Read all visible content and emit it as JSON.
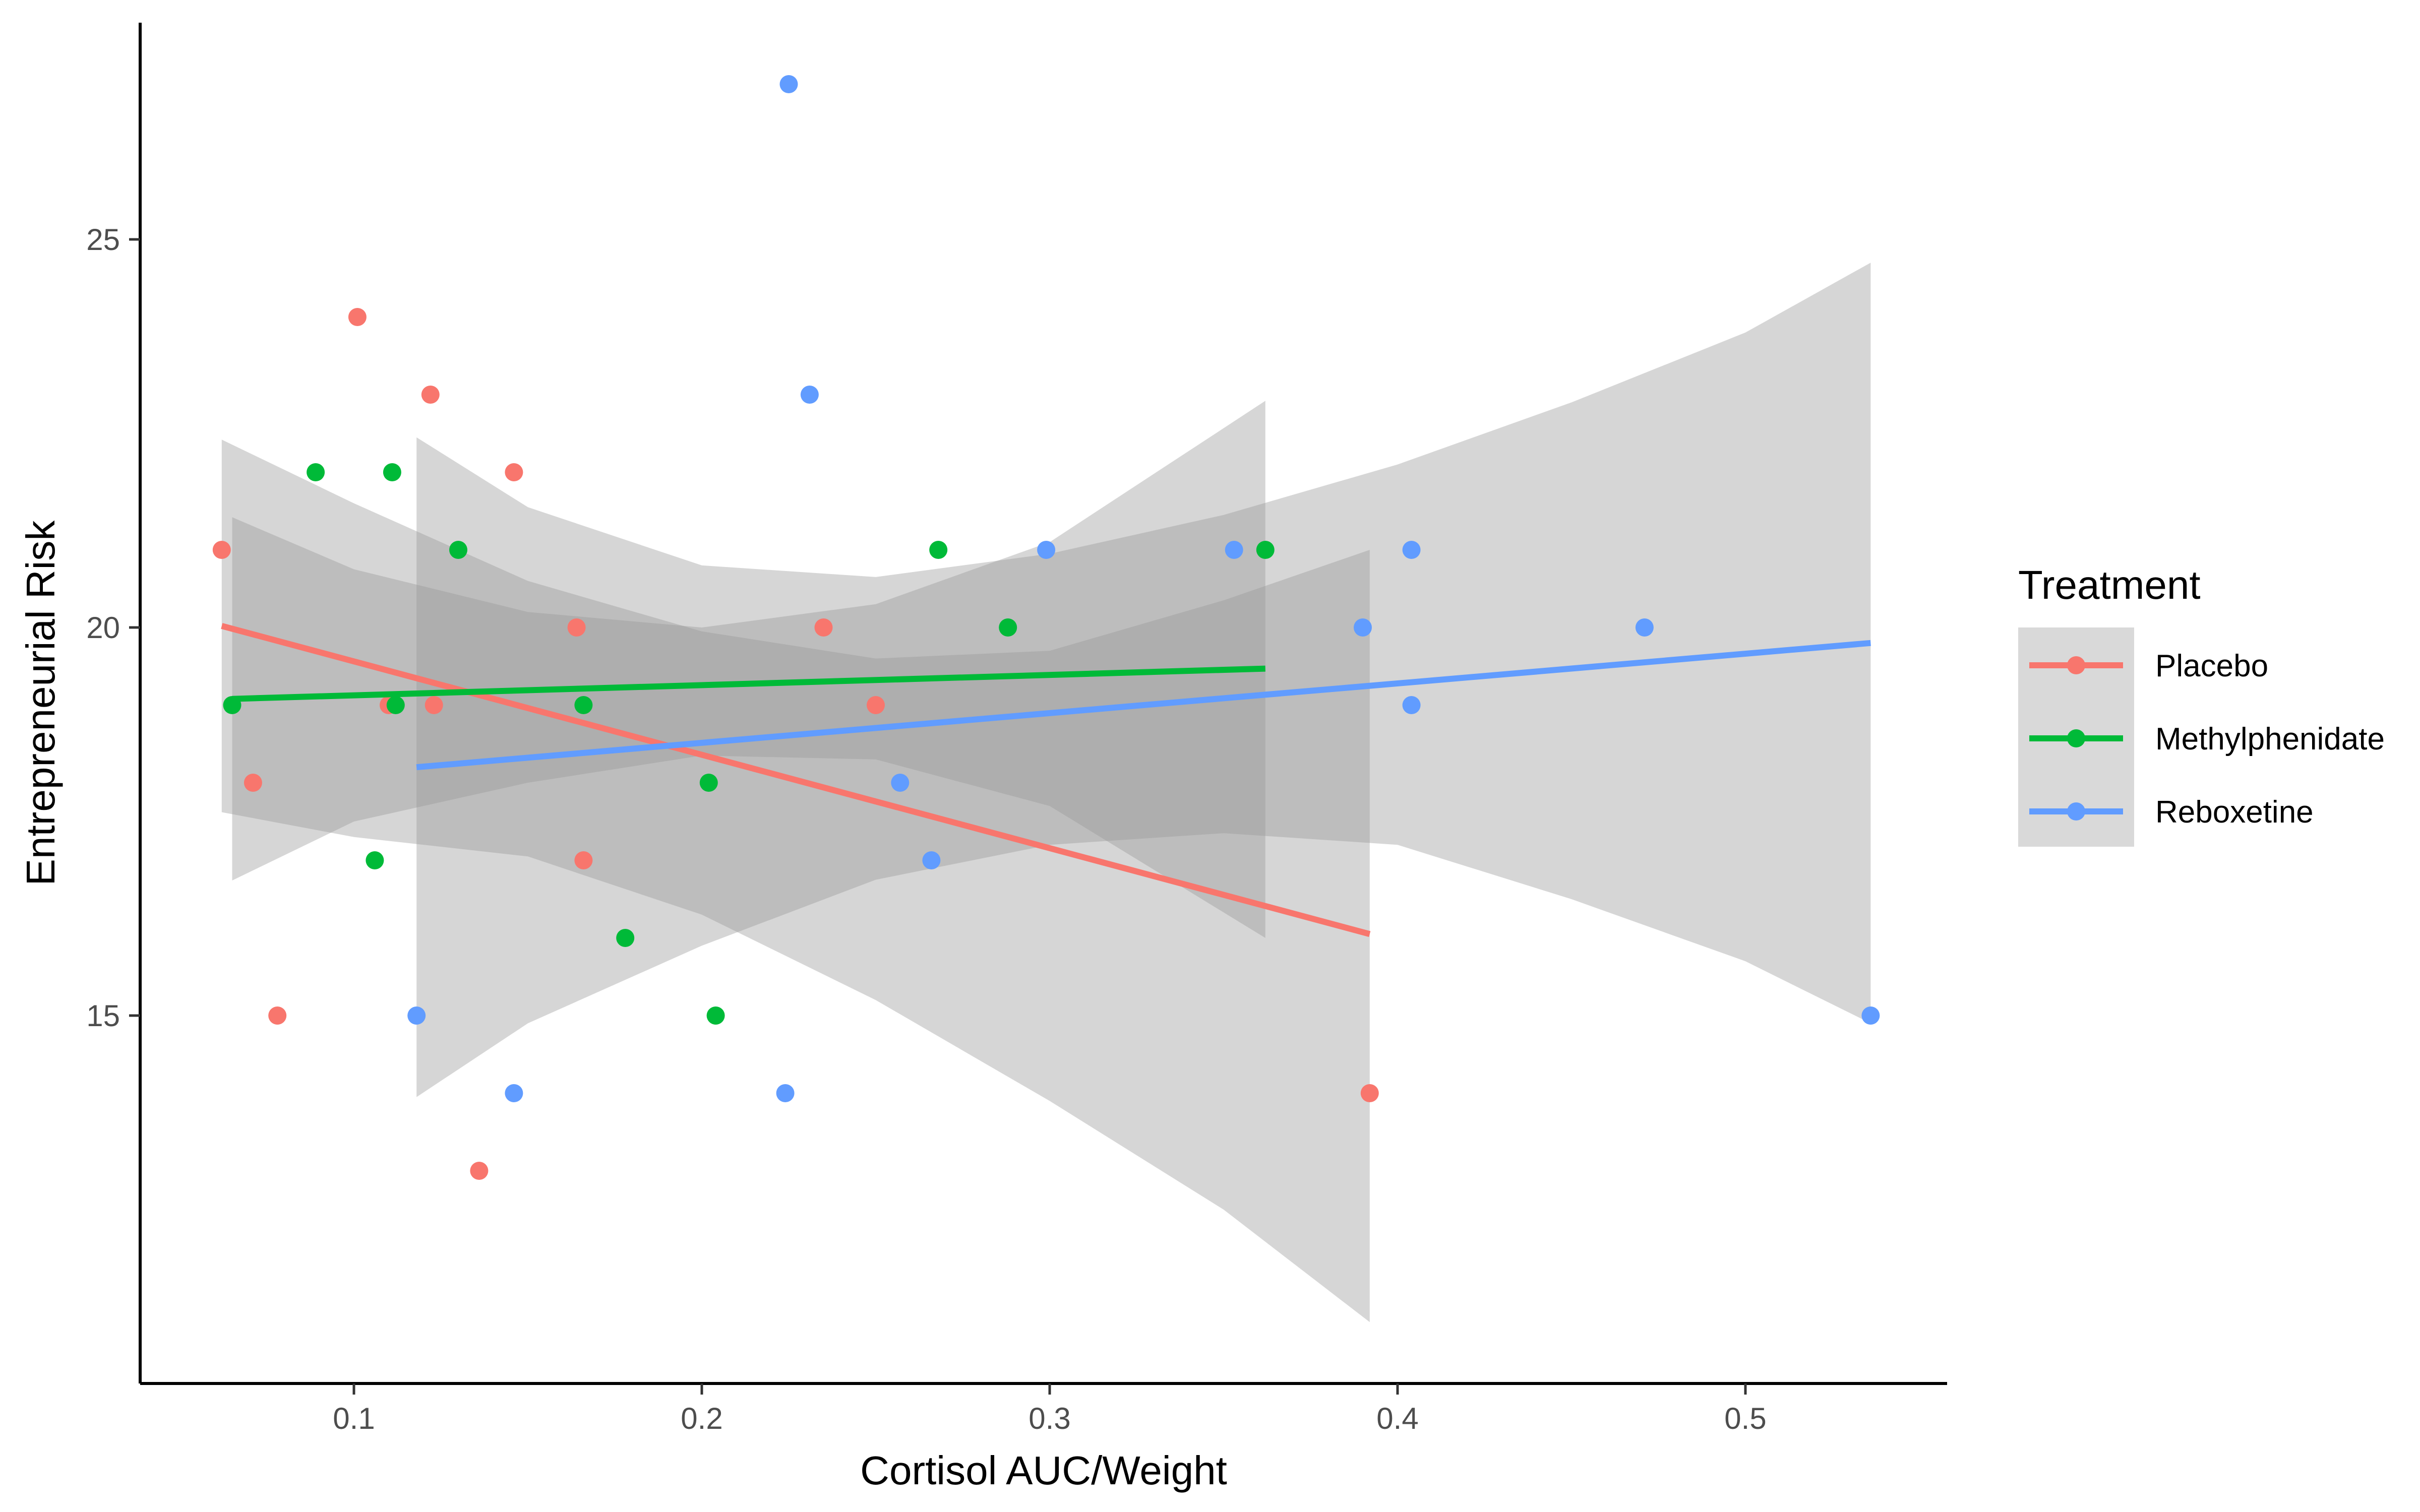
{
  "chart_data": {
    "type": "scatter",
    "xlabel": "Cortisol AUC/Weight",
    "ylabel": "Entrepreneurial Risk",
    "xlim": [
      0.038,
      0.56
    ],
    "ylim": [
      10.4,
      27.8
    ],
    "x_ticks": [
      0.1,
      0.2,
      0.3,
      0.4,
      0.5
    ],
    "y_ticks": [
      15,
      20,
      25
    ],
    "grid": false,
    "legend": {
      "title": "Treatment",
      "position": "right"
    },
    "series": [
      {
        "name": "Placebo",
        "color": "#F8766D",
        "points": [
          {
            "x": 0.062,
            "y": 21
          },
          {
            "x": 0.071,
            "y": 18
          },
          {
            "x": 0.078,
            "y": 15
          },
          {
            "x": 0.101,
            "y": 24
          },
          {
            "x": 0.11,
            "y": 19
          },
          {
            "x": 0.122,
            "y": 23
          },
          {
            "x": 0.123,
            "y": 19
          },
          {
            "x": 0.136,
            "y": 13
          },
          {
            "x": 0.146,
            "y": 22
          },
          {
            "x": 0.164,
            "y": 20
          },
          {
            "x": 0.166,
            "y": 17
          },
          {
            "x": 0.235,
            "y": 20
          },
          {
            "x": 0.25,
            "y": 19
          },
          {
            "x": 0.392,
            "y": 14
          }
        ],
        "fit": {
          "x": [
            0.062,
            0.392
          ],
          "y": [
            20.02,
            16.05
          ]
        },
        "ci": {
          "x": [
            0.062,
            0.1,
            0.15,
            0.2,
            0.25,
            0.3,
            0.35,
            0.392
          ],
          "upper": [
            22.42,
            21.6,
            20.6,
            19.95,
            19.6,
            19.7,
            20.35,
            21.0
          ],
          "lower": [
            17.62,
            17.3,
            17.05,
            16.3,
            15.2,
            13.9,
            12.5,
            11.05
          ]
        }
      },
      {
        "name": "Methylphenidate",
        "color": "#00BA38",
        "points": [
          {
            "x": 0.065,
            "y": 19
          },
          {
            "x": 0.089,
            "y": 22
          },
          {
            "x": 0.106,
            "y": 17
          },
          {
            "x": 0.111,
            "y": 22
          },
          {
            "x": 0.112,
            "y": 19
          },
          {
            "x": 0.13,
            "y": 21
          },
          {
            "x": 0.166,
            "y": 19
          },
          {
            "x": 0.178,
            "y": 16
          },
          {
            "x": 0.202,
            "y": 18
          },
          {
            "x": 0.204,
            "y": 15
          },
          {
            "x": 0.268,
            "y": 21
          },
          {
            "x": 0.288,
            "y": 20
          },
          {
            "x": 0.362,
            "y": 21
          }
        ],
        "fit": {
          "x": [
            0.065,
            0.362
          ],
          "y": [
            19.08,
            19.47
          ]
        },
        "ci": {
          "x": [
            0.065,
            0.1,
            0.15,
            0.2,
            0.25,
            0.3,
            0.362
          ],
          "upper": [
            21.42,
            20.75,
            20.2,
            20.0,
            20.3,
            21.1,
            22.92
          ],
          "lower": [
            16.74,
            17.5,
            18.0,
            18.35,
            18.3,
            17.7,
            16.0
          ]
        }
      },
      {
        "name": "Reboxetine",
        "color": "#619CFF",
        "points": [
          {
            "x": 0.118,
            "y": 15
          },
          {
            "x": 0.146,
            "y": 14
          },
          {
            "x": 0.224,
            "y": 14
          },
          {
            "x": 0.225,
            "y": 27
          },
          {
            "x": 0.231,
            "y": 23
          },
          {
            "x": 0.257,
            "y": 18
          },
          {
            "x": 0.266,
            "y": 17
          },
          {
            "x": 0.299,
            "y": 21
          },
          {
            "x": 0.353,
            "y": 21
          },
          {
            "x": 0.39,
            "y": 20
          },
          {
            "x": 0.404,
            "y": 21
          },
          {
            "x": 0.404,
            "y": 19
          },
          {
            "x": 0.471,
            "y": 20
          },
          {
            "x": 0.536,
            "y": 15
          }
        ],
        "fit": {
          "x": [
            0.118,
            0.536
          ],
          "y": [
            18.2,
            19.8
          ]
        },
        "ci": {
          "x": [
            0.118,
            0.15,
            0.2,
            0.25,
            0.3,
            0.35,
            0.4,
            0.45,
            0.5,
            0.536
          ],
          "upper": [
            22.45,
            21.55,
            20.8,
            20.65,
            20.95,
            21.45,
            22.1,
            22.9,
            23.8,
            24.7
          ],
          "lower": [
            13.95,
            14.9,
            15.9,
            16.75,
            17.2,
            17.35,
            17.2,
            16.5,
            15.7,
            14.9
          ]
        }
      }
    ]
  }
}
